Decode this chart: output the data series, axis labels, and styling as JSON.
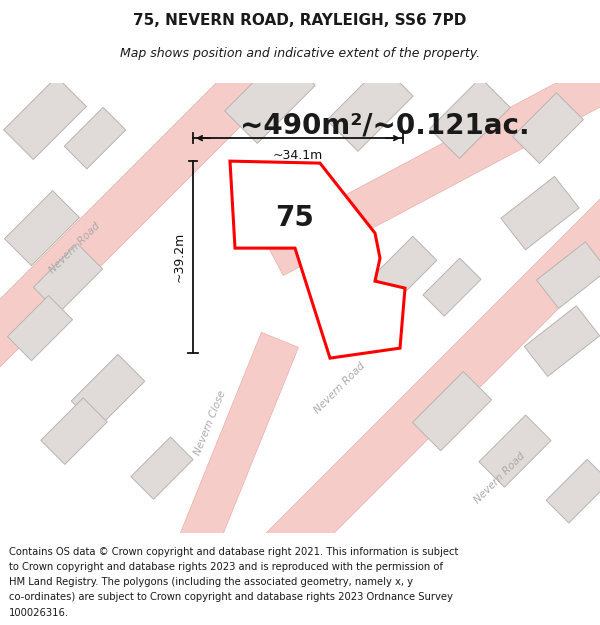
{
  "title_line1": "75, NEVERN ROAD, RAYLEIGH, SS6 7PD",
  "title_line2": "Map shows position and indicative extent of the property.",
  "area_text": "~490m²/~0.121ac.",
  "property_number": "75",
  "dim_vertical": "~39.2m",
  "dim_horizontal": "~34.1m",
  "footer_text": "Contains OS data © Crown copyright and database right 2021. This information is subject to Crown copyright and database rights 2023 and is reproduced with the permission of HM Land Registry. The polygons (including the associated geometry, namely x, y co-ordinates) are subject to Crown copyright and database rights 2023 Ordnance Survey 100026316.",
  "map_bg": "#f2eeec",
  "road_color": "#f5ccc8",
  "road_border": "#e8b0ac",
  "building_fill": "#e0dbd8",
  "building_border": "#b8b4b0",
  "property_fill": "#ffffff",
  "property_border": "#ff0000",
  "text_color": "#1a1a1a",
  "dim_color": "#111111",
  "road_label_color": "#aaaaaa",
  "title_fontsize": 11,
  "subtitle_fontsize": 9,
  "area_fontsize": 20,
  "number_fontsize": 20,
  "footer_fontsize": 7.2
}
